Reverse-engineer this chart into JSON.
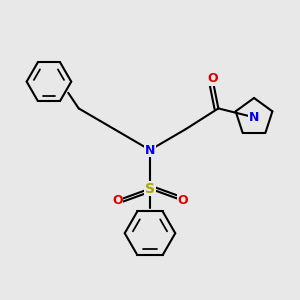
{
  "bg_color": "#e8e8e8",
  "bond_color": "#000000",
  "bond_lw": 1.5,
  "atom_colors": {
    "N": "#0000EE",
    "O": "#DD0000",
    "S": "#AAAA00"
  },
  "font_size_atom": 9,
  "font_size_label": 9
}
